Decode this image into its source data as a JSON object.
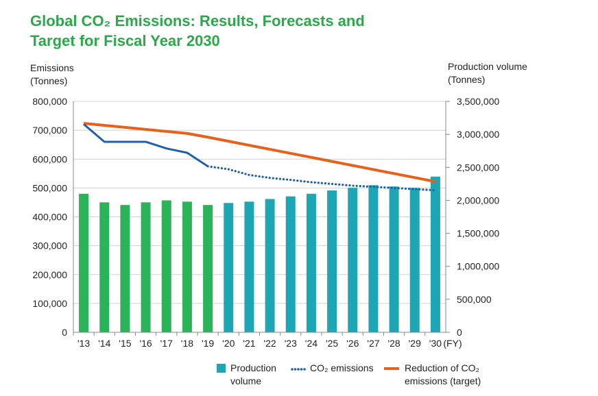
{
  "title_line1": "Global CO₂ Emissions: Results, Forecasts and",
  "title_line2": "Target for Fiscal Year 2030",
  "y_left_title_line1": "Emissions",
  "y_left_title_line2": "(Tonnes)",
  "y_right_title_line1": "Production volume",
  "y_right_title_line2": "(Tonnes)",
  "legend": {
    "production_line1": "Production",
    "production_line2": "volume",
    "emissions": "CO₂ emissions",
    "target_line1": "Reduction of CO₂",
    "target_line2": "emissions (target)"
  },
  "colors": {
    "title": "#2aa84a",
    "bar_actual": "#2bb35a",
    "bar_forecast": "#1ea6b5",
    "emissions_line": "#1f5fa8",
    "target_line": "#e8611a"
  },
  "chart_data": {
    "type": "bar",
    "x_unit": "(FY)",
    "categories": [
      "'13",
      "'14",
      "'15",
      "'16",
      "'17",
      "'18",
      "'19",
      "'20",
      "'21",
      "'22",
      "'23",
      "'24",
      "'25",
      "'26",
      "'27",
      "'28",
      "'29",
      "'30"
    ],
    "y_left": {
      "label": "Emissions (Tonnes)",
      "ylim": [
        0,
        800000
      ],
      "ticks": [
        "0",
        "100,000",
        "200,000",
        "300,000",
        "400,000",
        "500,000",
        "600,000",
        "700,000",
        "800,000"
      ]
    },
    "y_right": {
      "label": "Production volume (Tonnes)",
      "ylim": [
        0,
        3500000
      ],
      "ticks": [
        "0",
        "500,000",
        "1,000,000",
        "1,500,000",
        "2,000,000",
        "2,500,000",
        "3,000,000",
        "3,500,000"
      ]
    },
    "grid": true,
    "series": [
      {
        "name": "Production volume",
        "type": "bar",
        "axis": "right",
        "values": [
          2100000,
          1970000,
          1930000,
          1970000,
          2000000,
          1980000,
          1930000,
          1960000,
          1980000,
          2020000,
          2060000,
          2100000,
          2150000,
          2190000,
          2230000,
          2210000,
          2190000,
          2360000
        ],
        "actual_through": "'19"
      },
      {
        "name": "CO₂ emissions",
        "type": "line",
        "axis": "left",
        "values": [
          721000,
          660000,
          660000,
          660000,
          637000,
          622000,
          575000,
          565000,
          545000,
          535000,
          528000,
          520000,
          514000,
          508000,
          504000,
          500000,
          496000,
          492000
        ],
        "actual_through": "'19",
        "forecast_style": "dotted"
      },
      {
        "name": "Reduction of CO₂ emissions (target)",
        "type": "line",
        "axis": "left",
        "values": [
          724000,
          717000,
          710000,
          703000,
          696000,
          689000,
          676000,
          662000,
          648000,
          634000,
          620000,
          606000,
          592000,
          578000,
          564000,
          550000,
          536000,
          522000
        ]
      }
    ]
  }
}
